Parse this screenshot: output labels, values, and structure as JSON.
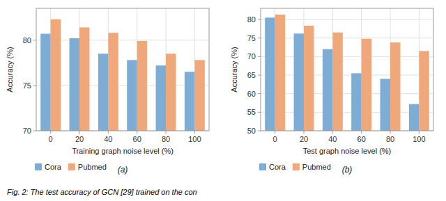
{
  "chart_data": [
    {
      "type": "bar",
      "title": "(a)",
      "x_label": "Training graph noise level (%)",
      "y_label": "Accuracy (%)",
      "categories": [
        "0",
        "20",
        "40",
        "60",
        "80",
        "100"
      ],
      "series": [
        {
          "name": "Cora",
          "color": "#7dadd4",
          "values": [
            80.7,
            80.2,
            78.5,
            77.8,
            77.2,
            76.5
          ]
        },
        {
          "name": "Pubmed",
          "color": "#f0a87a",
          "values": [
            82.3,
            81.4,
            80.8,
            79.9,
            78.5,
            77.8
          ]
        }
      ],
      "ylim": [
        70,
        83.5
      ],
      "yticks": [
        70,
        75,
        80
      ],
      "grid": true,
      "legend": "lower left"
    },
    {
      "type": "bar",
      "title": "(b)",
      "x_label": "Test graph noise level (%)",
      "y_label": "Accuracy (%)",
      "categories": [
        "0",
        "20",
        "40",
        "60",
        "80",
        "100"
      ],
      "series": [
        {
          "name": "Cora",
          "color": "#7dadd4",
          "values": [
            80.5,
            76.2,
            72.0,
            65.5,
            64.0,
            57.2
          ]
        },
        {
          "name": "Pubmed",
          "color": "#f0a87a",
          "values": [
            81.3,
            78.3,
            76.5,
            74.8,
            73.8,
            71.5
          ]
        }
      ],
      "ylim": [
        50,
        83
      ],
      "yticks": [
        50,
        55,
        60,
        65,
        70,
        75,
        80
      ],
      "grid": true,
      "legend": "lower left"
    }
  ],
  "caption": "Fig. 2: The test accuracy of GCN [29] trained on the con"
}
